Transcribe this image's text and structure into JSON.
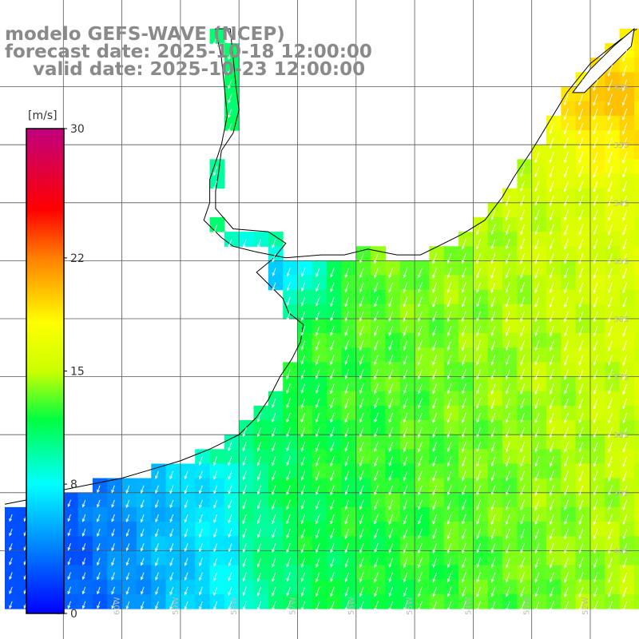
{
  "title": {
    "model": "modelo GEFS-WAVE (NCEP)",
    "forecast": "forecast date: 2025-10-18 12:00:00",
    "valid": "valid date: 2025-10-23 12:00:00"
  },
  "colorbar": {
    "unit": "[m/s]",
    "min": 0,
    "max": 30,
    "tick_values": [
      0,
      8,
      15,
      22,
      30
    ],
    "tick_labels": [
      "0",
      "8",
      "15",
      "22",
      "30"
    ],
    "stops": [
      {
        "value": 0,
        "color": "#0000ff"
      },
      {
        "value": 4,
        "color": "#0080ff"
      },
      {
        "value": 8,
        "color": "#00ffff"
      },
      {
        "value": 12,
        "color": "#00ff40"
      },
      {
        "value": 15,
        "color": "#ccff00"
      },
      {
        "value": 18,
        "color": "#ffff00"
      },
      {
        "value": 22,
        "color": "#ff8000"
      },
      {
        "value": 25,
        "color": "#ff0000"
      },
      {
        "value": 30,
        "color": "#c0007f"
      }
    ]
  },
  "map": {
    "lon_range": [
      -62,
      -51
    ],
    "lat_range": [
      -41,
      -31
    ],
    "grid_lons": [
      -61,
      -60,
      -59,
      -58,
      -57,
      -56,
      -55,
      -54,
      -53,
      -52
    ],
    "grid_lats": [
      -32,
      -33,
      -34,
      -35,
      -36,
      -37,
      -38,
      -39,
      -40
    ],
    "lon_labels": [
      "61W",
      "60W",
      "59W",
      "58W",
      "57W",
      "56W",
      "55W",
      "54W",
      "53W",
      "52W"
    ],
    "lat_labels": [
      "32S",
      "33S",
      "34S",
      "35S",
      "36S",
      "37S",
      "38S",
      "39S",
      "40S"
    ],
    "cell_deg": 0.25,
    "colors": {
      "land": "#ffffff",
      "grid": "#555555",
      "coast": "#000000",
      "arrow": "#ffffff"
    },
    "wind_field": {
      "description_values": "wind speed m/s sampled by region",
      "regions": [
        {
          "name": "la-plata-estuary",
          "speed": 5
        },
        {
          "name": "argentine-shelf-coast",
          "speed": 7
        },
        {
          "name": "uruguay-offshore",
          "speed": 12
        },
        {
          "name": "southern-brazil-offshore",
          "speed": 16
        },
        {
          "name": "central-open-ocean",
          "speed": 13
        }
      ],
      "direction": "from north-northeast"
    }
  }
}
